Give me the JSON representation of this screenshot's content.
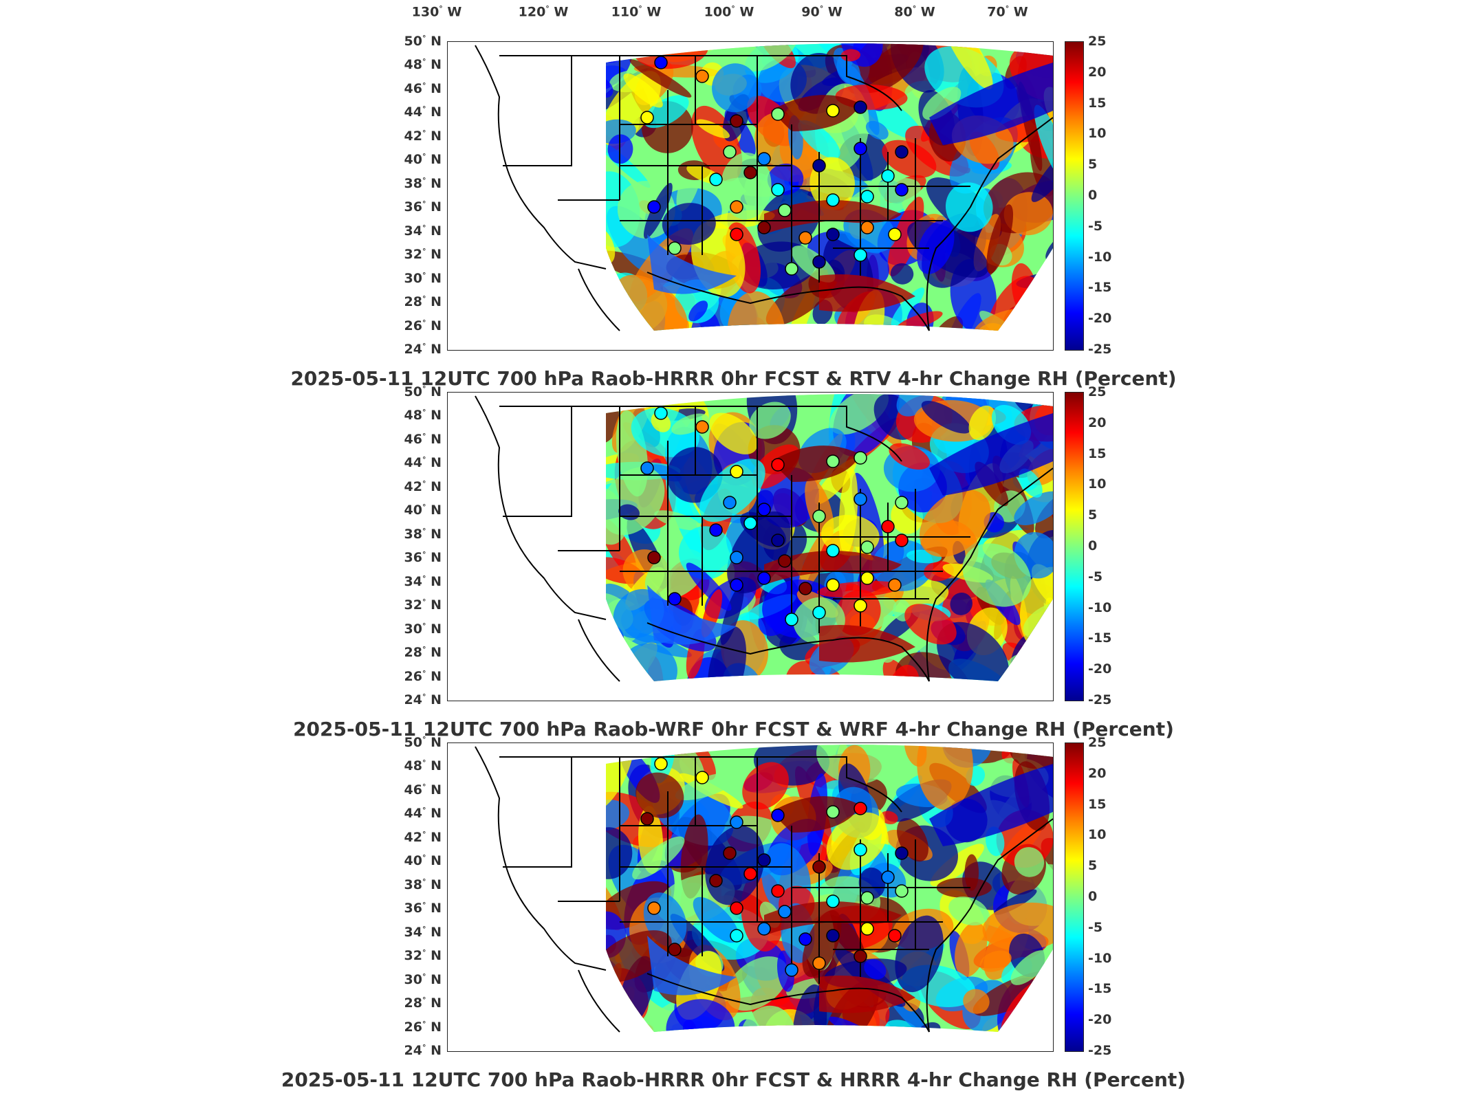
{
  "lon_labels": [
    "130",
    "120",
    "110",
    "100",
    "90",
    "80",
    "70"
  ],
  "lon_hemi": "W",
  "lat_labels": [
    "50",
    "48",
    "46",
    "44",
    "42",
    "40",
    "38",
    "36",
    "34",
    "32",
    "30",
    "28",
    "26",
    "24"
  ],
  "lat_hemi": "N",
  "colorbar": {
    "ticks": [
      "25",
      "20",
      "15",
      "10",
      "5",
      "0",
      "-5",
      "-10",
      "-15",
      "-20",
      "-25"
    ],
    "min": -25,
    "max": 25,
    "colors": [
      "#00008f",
      "#0000ff",
      "#0080ff",
      "#00ffff",
      "#80ff80",
      "#ffff00",
      "#ff8000",
      "#ff0000",
      "#800000"
    ]
  },
  "panels": [
    {
      "title": "2025-05-11 12UTC 700 hPa Raob-HRRR 0hr FCST & RTV 4-hr Change RH (Percent)"
    },
    {
      "title": "2025-05-11 12UTC 700 hPa Raob-WRF 0hr FCST & WRF 4-hr Change RH (Percent)"
    },
    {
      "title": "2025-05-11 12UTC 700 hPa Raob-HRRR 0hr FCST & HRRR 4-hr Change RH (Percent)"
    }
  ]
}
